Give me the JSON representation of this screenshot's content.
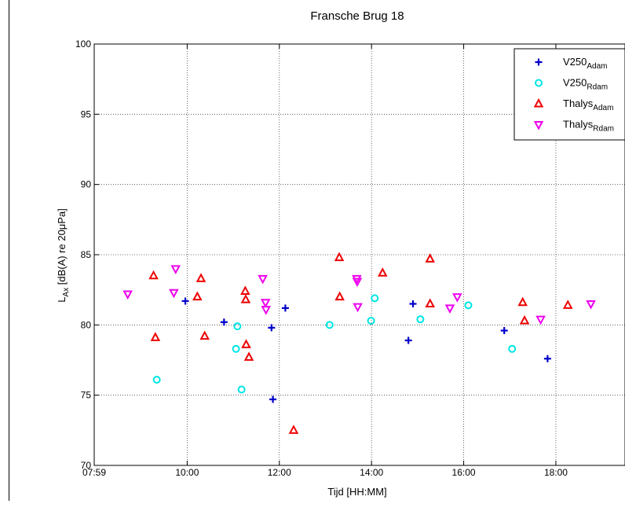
{
  "chart_data": {
    "type": "scatter",
    "title": "Fransche Brug 18",
    "xlabel": "Tijd [HH:MM]",
    "ylabel_main": "L",
    "ylabel_sub": "Ax",
    "ylabel_rest": " [dB(A) re 20μPa]",
    "x_unit": "hours",
    "xlim": [
      7.983,
      19.5
    ],
    "ylim": [
      70,
      100
    ],
    "x_ticks": [
      {
        "value": 7.983,
        "label": "07:59"
      },
      {
        "value": 10,
        "label": "10:00"
      },
      {
        "value": 12,
        "label": "12:00"
      },
      {
        "value": 14,
        "label": "14:00"
      },
      {
        "value": 16,
        "label": "16:00"
      },
      {
        "value": 18,
        "label": "18:00"
      }
    ],
    "y_ticks": [
      70,
      75,
      80,
      85,
      90,
      95,
      100
    ],
    "grid": true,
    "legend_position": "top-right",
    "series": [
      {
        "name": "V250",
        "name_sub": "Adam",
        "marker": "plus",
        "color": "#0000cc",
        "points": [
          [
            9.96,
            81.7
          ],
          [
            10.8,
            80.2
          ],
          [
            11.83,
            79.8
          ],
          [
            11.86,
            74.7
          ],
          [
            12.13,
            81.2
          ],
          [
            14.8,
            78.9
          ],
          [
            14.9,
            81.5
          ],
          [
            16.88,
            79.6
          ],
          [
            17.82,
            77.6
          ]
        ]
      },
      {
        "name": "V250",
        "name_sub": "Rdam",
        "marker": "circle",
        "color": "#00e5e5",
        "points": [
          [
            9.34,
            76.1
          ],
          [
            11.06,
            78.3
          ],
          [
            11.09,
            79.9
          ],
          [
            11.18,
            75.4
          ],
          [
            13.09,
            80.0
          ],
          [
            13.99,
            80.3
          ],
          [
            14.07,
            81.9
          ],
          [
            15.06,
            80.4
          ],
          [
            16.1,
            81.4
          ],
          [
            17.05,
            78.3
          ]
        ]
      },
      {
        "name": "Thalys",
        "name_sub": "Adam",
        "marker": "triangle-up",
        "color": "#ee0000",
        "points": [
          [
            9.27,
            83.5
          ],
          [
            9.31,
            79.1
          ],
          [
            10.22,
            82.0
          ],
          [
            10.3,
            83.3
          ],
          [
            10.38,
            79.2
          ],
          [
            11.26,
            82.4
          ],
          [
            11.27,
            81.8
          ],
          [
            11.28,
            78.6
          ],
          [
            11.34,
            77.7
          ],
          [
            12.31,
            72.5
          ],
          [
            13.3,
            84.8
          ],
          [
            13.31,
            82.0
          ],
          [
            14.24,
            83.7
          ],
          [
            15.27,
            84.7
          ],
          [
            15.27,
            81.5
          ],
          [
            17.28,
            81.6
          ],
          [
            17.32,
            80.3
          ],
          [
            18.26,
            81.4
          ]
        ]
      },
      {
        "name": "Thalys",
        "name_sub": "Rdam",
        "marker": "triangle-down",
        "color": "#ee00ee",
        "points": [
          [
            8.71,
            82.2
          ],
          [
            9.71,
            82.3
          ],
          [
            9.75,
            84.0
          ],
          [
            11.64,
            83.3
          ],
          [
            11.7,
            81.6
          ],
          [
            11.71,
            81.1
          ],
          [
            13.68,
            83.3
          ],
          [
            13.69,
            83.1
          ],
          [
            13.7,
            81.3
          ],
          [
            15.7,
            81.2
          ],
          [
            15.86,
            82.0
          ],
          [
            17.67,
            80.4
          ],
          [
            18.76,
            81.5
          ]
        ]
      }
    ]
  }
}
